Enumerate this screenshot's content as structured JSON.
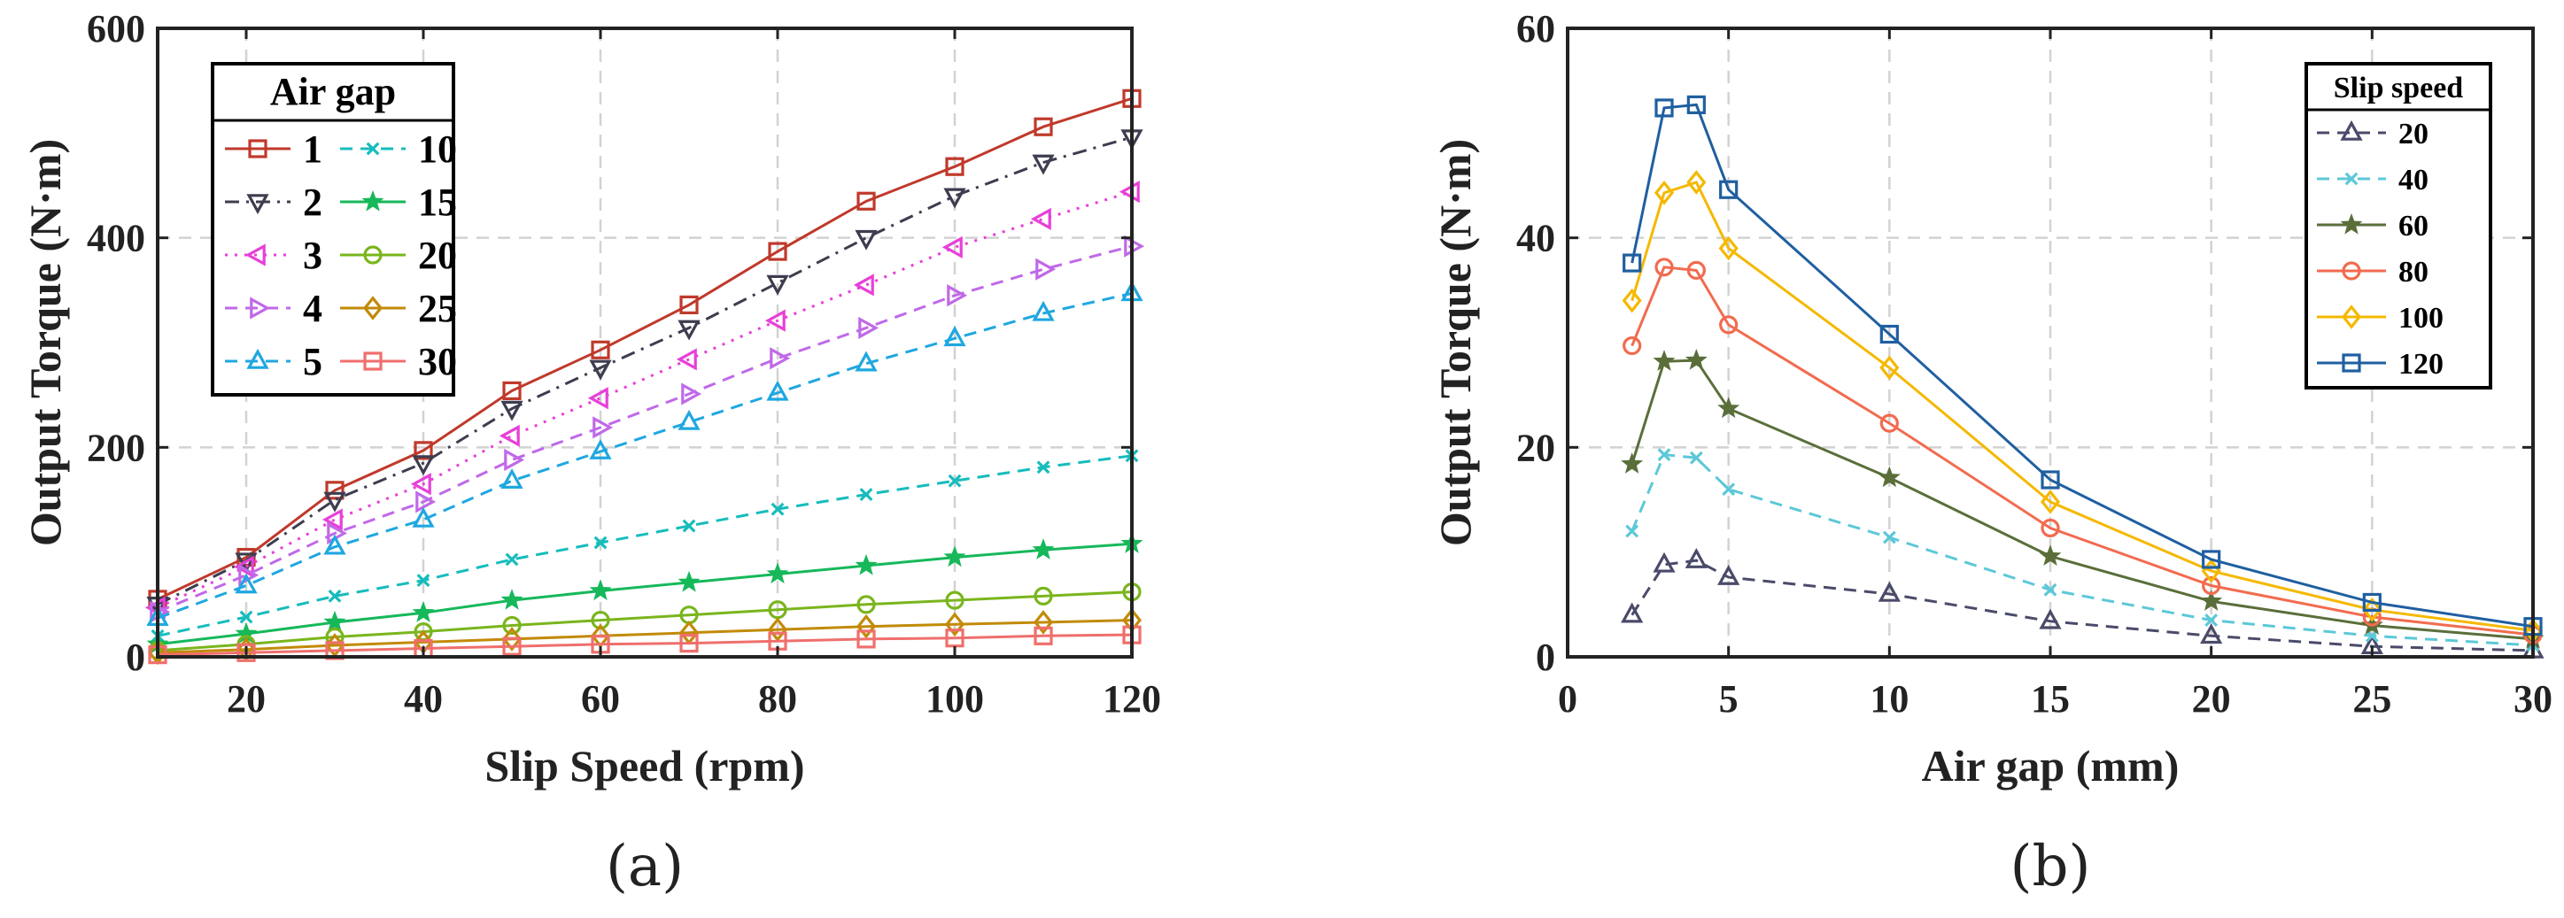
{
  "chart_data": [
    {
      "type": "line",
      "panel_label": "(a)",
      "xlabel": "Slip Speed (rpm)",
      "ylabel": "Output Torque (N·m)",
      "xlim": [
        10,
        120
      ],
      "ylim": [
        0,
        600
      ],
      "xticks": [
        "20",
        "40",
        "60",
        "80",
        "100",
        "120"
      ],
      "yticks": [
        "0",
        "200",
        "400",
        "600"
      ],
      "grid": true,
      "legend_title": "Air gap",
      "legend_position": "top-left",
      "x": [
        10,
        20,
        30,
        40,
        50,
        60,
        70,
        80,
        90,
        100,
        110,
        120
      ],
      "series": [
        {
          "name": "1",
          "color": "#c0392b",
          "dash": "solid",
          "marker": "square",
          "values": [
            55,
            95,
            159,
            197,
            254,
            293,
            336,
            387,
            435,
            468,
            506,
            533
          ]
        },
        {
          "name": "2",
          "color": "#3d3d4f",
          "dash": "dashdot",
          "marker": "triangle-down",
          "values": [
            50,
            92,
            150,
            185,
            237,
            276,
            314,
            357,
            400,
            440,
            472,
            496
          ]
        },
        {
          "name": "3",
          "color": "#e83fd8",
          "dash": "dotted",
          "marker": "triangle-left",
          "values": [
            47,
            86,
            131,
            165,
            211,
            247,
            284,
            321,
            355,
            391,
            418,
            444
          ]
        },
        {
          "name": "4",
          "color": "#c069e8",
          "dash": "dashed",
          "marker": "triangle-right",
          "values": [
            43,
            78,
            118,
            148,
            188,
            219,
            251,
            285,
            314,
            345,
            370,
            392
          ]
        },
        {
          "name": "5",
          "color": "#1fa7e0",
          "dash": "dashed",
          "marker": "triangle-up",
          "values": [
            37,
            68,
            105,
            131,
            168,
            196,
            224,
            252,
            280,
            304,
            328,
            347
          ]
        },
        {
          "name": "10",
          "color": "#17bcbc",
          "dash": "dashed",
          "marker": "x",
          "values": [
            20,
            38,
            58,
            73,
            93,
            109,
            125,
            141,
            155,
            168,
            181,
            192
          ]
        },
        {
          "name": "15",
          "color": "#16b85a",
          "dash": "solid",
          "marker": "star",
          "values": [
            12,
            22,
            33,
            42,
            54,
            63,
            71,
            79,
            87,
            95,
            102,
            108
          ]
        },
        {
          "name": "20",
          "color": "#7ab51d",
          "dash": "solid",
          "marker": "circle",
          "values": [
            6,
            12,
            19,
            24,
            30,
            35,
            40,
            45,
            50,
            54,
            58,
            62
          ]
        },
        {
          "name": "25",
          "color": "#c28a08",
          "dash": "solid",
          "marker": "diamond",
          "values": [
            4,
            7,
            11,
            14,
            17,
            20,
            23,
            26,
            29,
            31,
            33,
            35
          ]
        },
        {
          "name": "30",
          "color": "#ef6f6c",
          "dash": "solid",
          "marker": "square",
          "values": [
            2,
            4,
            6,
            8,
            10,
            12,
            13,
            15,
            17,
            18,
            20,
            21
          ]
        }
      ]
    },
    {
      "type": "line",
      "panel_label": "(b)",
      "xlabel": "Air gap (mm)",
      "ylabel": "Output Torque (N·m)",
      "xlim": [
        0,
        30
      ],
      "ylim": [
        0,
        60
      ],
      "xticks": [
        "0",
        "5",
        "10",
        "15",
        "20",
        "25",
        "30"
      ],
      "yticks": [
        "0",
        "20",
        "40",
        "60"
      ],
      "grid": true,
      "legend_title": "Slip speed",
      "legend_position": "top-right",
      "x": [
        2,
        3,
        4,
        5,
        10,
        15,
        20,
        25,
        30
      ],
      "series": [
        {
          "name": "20",
          "color": "#4a4a6a",
          "dash": "dashed",
          "marker": "triangle-up",
          "values": [
            4.0,
            8.8,
            9.2,
            7.6,
            6.0,
            3.4,
            2.0,
            1.0,
            0.6
          ]
        },
        {
          "name": "40",
          "color": "#5cc8d8",
          "dash": "dashed",
          "marker": "x",
          "values": [
            12.0,
            19.3,
            19.0,
            16.0,
            11.4,
            6.4,
            3.5,
            2.0,
            1.1
          ]
        },
        {
          "name": "60",
          "color": "#5a6e3a",
          "dash": "solid",
          "marker": "star",
          "values": [
            18.4,
            28.2,
            28.3,
            23.7,
            17.1,
            9.6,
            5.3,
            3.0,
            1.7
          ]
        },
        {
          "name": "80",
          "color": "#f26b4f",
          "dash": "solid",
          "marker": "circle",
          "values": [
            29.7,
            37.2,
            36.9,
            31.7,
            22.3,
            12.3,
            6.8,
            3.8,
            2.1
          ]
        },
        {
          "name": "100",
          "color": "#f5b800",
          "dash": "solid",
          "marker": "diamond",
          "values": [
            34.0,
            44.3,
            45.3,
            39.0,
            27.6,
            14.8,
            8.2,
            4.5,
            2.5
          ]
        },
        {
          "name": "120",
          "color": "#1f5fa0",
          "dash": "solid",
          "marker": "square",
          "values": [
            37.6,
            52.4,
            52.7,
            44.6,
            30.8,
            16.9,
            9.3,
            5.2,
            2.9
          ]
        }
      ]
    }
  ]
}
